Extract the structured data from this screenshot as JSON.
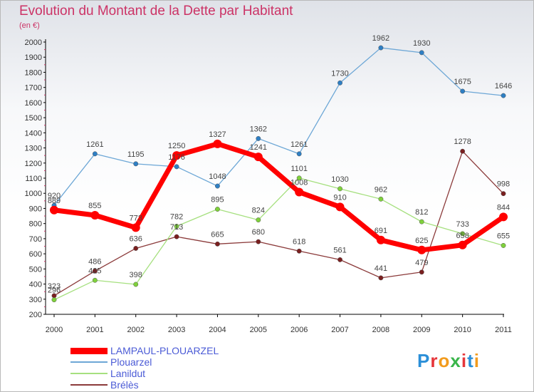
{
  "title": "Evolution du Montant de la Dette par Habitant",
  "subtitle": "(en €)",
  "logo": {
    "text": "Proxiti",
    "colors": [
      "#2b8fd8",
      "#e6353a",
      "#f29b1d",
      "#39b54a",
      "#e6353a",
      "#2b8fd8",
      "#f29b1d"
    ]
  },
  "chart_data": {
    "type": "line",
    "x": [
      "2000",
      "2001",
      "2002",
      "2003",
      "2004",
      "2005",
      "2006",
      "2007",
      "2008",
      "2009",
      "2010",
      "2011"
    ],
    "ylim": [
      200,
      2000
    ],
    "yticks": [
      200,
      300,
      400,
      500,
      600,
      700,
      800,
      900,
      1000,
      1100,
      1200,
      1300,
      1400,
      1500,
      1600,
      1700,
      1800,
      1900,
      2000
    ],
    "grid": false,
    "legend_position": "bottom-left",
    "series": [
      {
        "name": "LAMPAUL-PLOUARZEL",
        "color": "#ff0000",
        "marker": "#ff0000",
        "values": [
          889,
          855,
          773,
          1250,
          1327,
          1241,
          1008,
          910,
          691,
          625,
          658,
          844
        ]
      },
      {
        "name": "Plouarzel",
        "color": "#6da7d6",
        "marker": "#2e7fc4",
        "values": [
          920,
          1261,
          1195,
          1176,
          1048,
          1362,
          1261,
          1730,
          1962,
          1930,
          1675,
          1646
        ]
      },
      {
        "name": "Lanildut",
        "color": "#a6e07f",
        "marker": "#7fd13b",
        "values": [
          296,
          425,
          398,
          782,
          895,
          824,
          1101,
          1030,
          962,
          812,
          733,
          655
        ]
      },
      {
        "name": "Brélès",
        "color": "#8b3a3a",
        "marker": "#7a1f1f",
        "values": [
          323,
          486,
          636,
          713,
          665,
          680,
          618,
          561,
          441,
          479,
          1278,
          998
        ]
      }
    ],
    "data_labels": [
      [
        "889",
        "855",
        "773",
        "1250",
        "1327",
        "1241",
        "1008",
        "910",
        "691",
        "625",
        "658",
        "844"
      ],
      [
        "920",
        "1261",
        "1195",
        "1176",
        "1048",
        "1362",
        "1261",
        "1730",
        "1962",
        "1930",
        "1675",
        "1646"
      ],
      [
        "296",
        "425",
        "398",
        "782",
        "895",
        "824",
        "1101",
        "1030",
        "962",
        "812",
        "733",
        "655"
      ],
      [
        "323",
        "486",
        "636",
        "713",
        "665",
        "680",
        "618",
        "561",
        "441",
        "479",
        "1278",
        "998"
      ]
    ]
  }
}
